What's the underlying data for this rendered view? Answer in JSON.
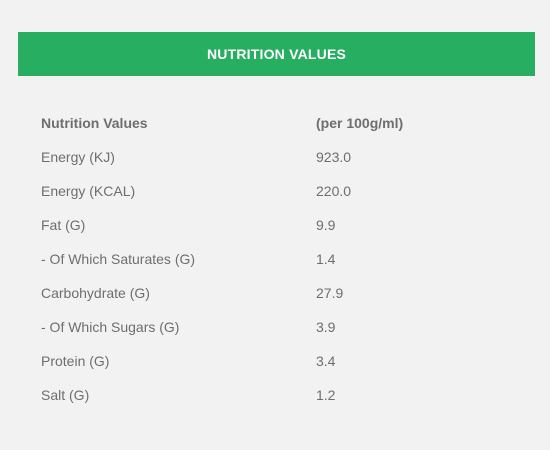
{
  "header": {
    "title": "NUTRITION VALUES"
  },
  "table": {
    "columns": [
      "Nutrition Values",
      "(per 100g/ml)"
    ],
    "rows": [
      [
        "Energy (KJ)",
        "923.0"
      ],
      [
        "Energy (KCAL)",
        "220.0"
      ],
      [
        "Fat (G)",
        "9.9"
      ],
      [
        "- Of Which Saturates (G)",
        "1.4"
      ],
      [
        "Carbohydrate (G)",
        "27.9"
      ],
      [
        "- Of Which Sugars (G)",
        "3.9"
      ],
      [
        "Protein (G)",
        "3.4"
      ],
      [
        "Salt (G)",
        "1.2"
      ]
    ]
  },
  "colors": {
    "header_background": "#27ae60",
    "page_background": "#f2f2f2",
    "text": "#6e6e6e"
  }
}
